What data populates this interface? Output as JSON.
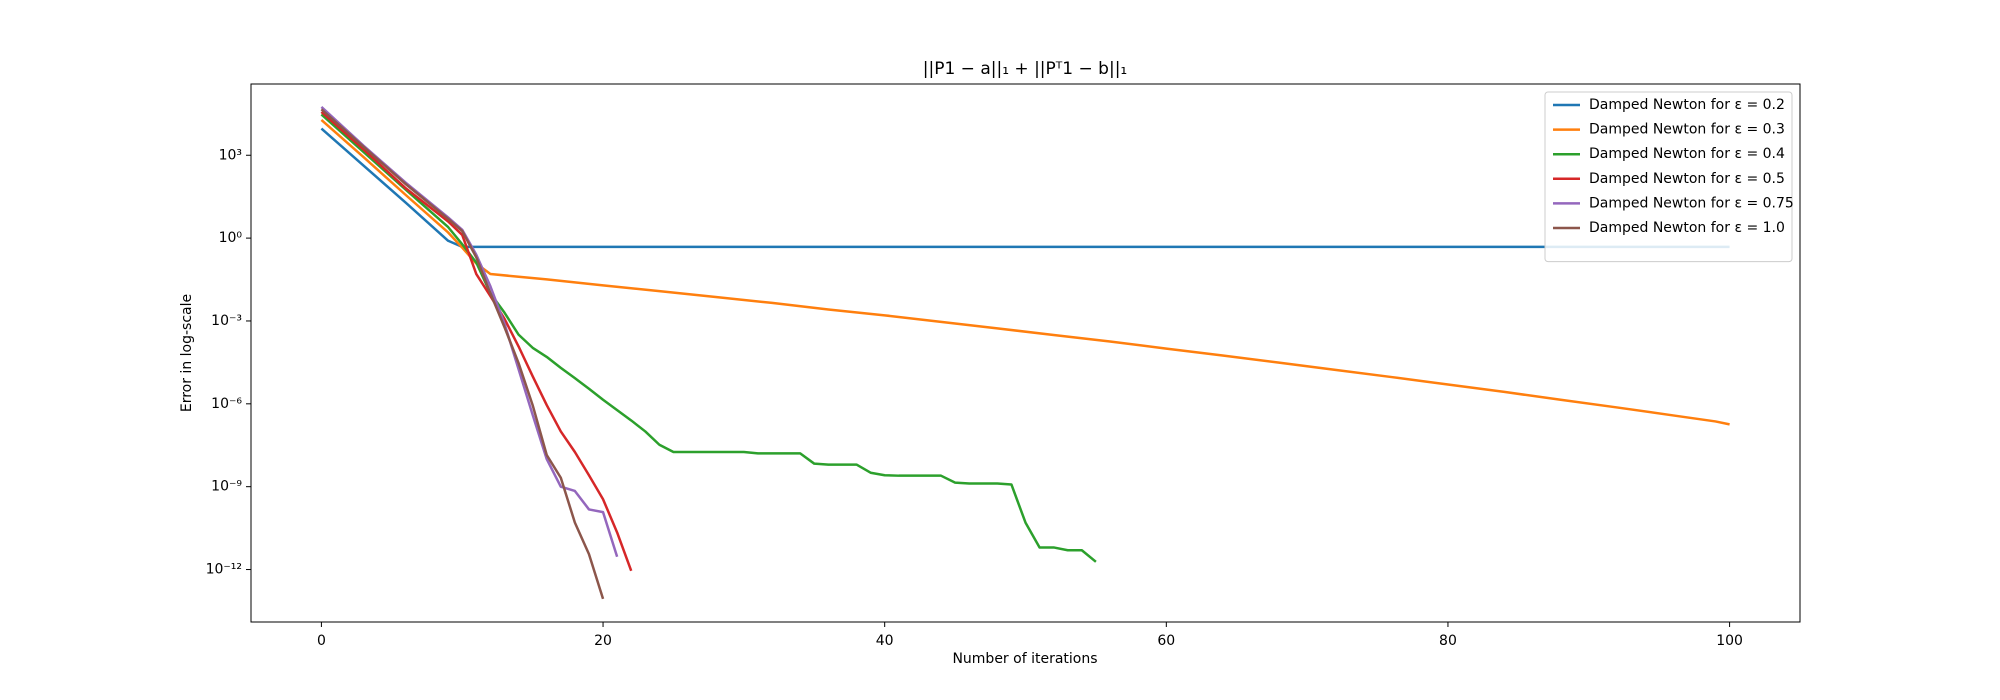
{
  "chart_data": {
    "type": "line",
    "title": "||P1 − a||₁ + ||Pᵀ1 − b||₁",
    "x_label": "Number of iterations",
    "y_label": "Error in log-scale",
    "ylog": true,
    "legend": "upper right",
    "xlim": [
      -5,
      105
    ],
    "xticks": [
      0,
      20,
      40,
      60,
      80,
      100
    ],
    "ylim": [
      1.26e-14,
      380000.0
    ],
    "yticks": [
      {
        "value": 1000,
        "label": "10³"
      },
      {
        "value": 1,
        "label": "10⁰"
      },
      {
        "value": 0.001,
        "label": "10⁻³"
      },
      {
        "value": 1e-06,
        "label": "10⁻⁶"
      },
      {
        "value": 1e-09,
        "label": "10⁻⁹"
      },
      {
        "value": 1e-12,
        "label": "10⁻¹²"
      }
    ],
    "series": [
      {
        "name": "Damped Newton for ε = 0.2",
        "color": "#1f77b4",
        "x": [
          0,
          3,
          6,
          9,
          10,
          100
        ],
        "values": [
          9300,
          420,
          19,
          0.8,
          0.48,
          0.48
        ]
      },
      {
        "name": "Damped Newton for ε = 0.3",
        "color": "#ff7f0e",
        "x": [
          0,
          3,
          6,
          9,
          10,
          11,
          12,
          16,
          20,
          24,
          28,
          32,
          36,
          40,
          44,
          48,
          52,
          56,
          60,
          64,
          68,
          72,
          76,
          80,
          84,
          88,
          92,
          96,
          99,
          100
        ],
        "values": [
          19000,
          850,
          36,
          1.6,
          0.45,
          0.12,
          0.05,
          0.032,
          0.0195,
          0.012,
          0.0074,
          0.0045,
          0.0026,
          0.0016,
          0.00093,
          0.00054,
          0.00031,
          0.00018,
          0.0001,
          5.6e-05,
          3.1e-05,
          1.7e-05,
          9.3e-06,
          5e-06,
          2.7e-06,
          1.4e-06,
          7.4e-07,
          3.8e-07,
          2.3e-07,
          1.8e-07
        ]
      },
      {
        "name": "Damped Newton for ε = 0.4",
        "color": "#2ca02c",
        "x": [
          0,
          3,
          6,
          9,
          10,
          11,
          12,
          13,
          14,
          15,
          16,
          17,
          18,
          19,
          20,
          21,
          22,
          23,
          24,
          25,
          30,
          31,
          34,
          35,
          36,
          38,
          39,
          40,
          41,
          44,
          45,
          46,
          48,
          49,
          50,
          51,
          52,
          53,
          54,
          55
        ],
        "values": [
          30000,
          1300,
          56,
          2.5,
          0.6,
          0.13,
          0.01,
          0.002,
          0.00032,
          0.000107,
          5e-05,
          2e-05,
          8.5e-06,
          3.5e-06,
          1.4e-06,
          5.9e-07,
          2.5e-07,
          1e-07,
          3.3e-08,
          1.8e-08,
          1.8e-08,
          1.6e-08,
          1.6e-08,
          6.8e-09,
          6.3e-09,
          6.3e-09,
          3.2e-09,
          2.6e-09,
          2.5e-09,
          2.5e-09,
          1.4e-09,
          1.3e-09,
          1.3e-09,
          1.2e-09,
          5e-11,
          6.3e-12,
          6.3e-12,
          5e-12,
          5e-12,
          1.9e-12
        ]
      },
      {
        "name": "Damped Newton for ε = 0.5",
        "color": "#d62728",
        "x": [
          0,
          3,
          6,
          9,
          10,
          11,
          12,
          13,
          14,
          15,
          16,
          17,
          18,
          19,
          20,
          21,
          22
        ],
        "values": [
          37000,
          1600,
          63,
          4,
          1.3,
          0.05,
          0.008,
          0.0012,
          0.00012,
          1e-05,
          9e-07,
          1e-07,
          1.8e-08,
          2.6e-09,
          3.5e-10,
          2.2e-11,
          9e-13
        ]
      },
      {
        "name": "Damped Newton for ε = 0.75",
        "color": "#9467bd",
        "x": [
          0,
          3,
          6,
          9,
          10,
          11,
          12,
          13,
          14,
          15,
          16,
          17,
          18,
          19,
          20,
          21
        ],
        "values": [
          56000,
          2200,
          100,
          5.6,
          2,
          0.25,
          0.018,
          0.0008,
          1.8e-05,
          4e-07,
          1e-08,
          1e-09,
          7e-10,
          1.5e-10,
          1.2e-10,
          2.9e-12
        ]
      },
      {
        "name": "Damped Newton for ε = 1.0",
        "color": "#8c564b",
        "x": [
          0,
          3,
          6,
          9,
          10,
          11,
          12,
          13,
          14,
          15,
          16,
          17,
          18,
          19,
          20
        ],
        "values": [
          46000,
          2000,
          89,
          5,
          1.8,
          0.2,
          0.01,
          0.0006,
          3e-05,
          9e-07,
          1.4e-08,
          2.1e-09,
          5e-11,
          3.6e-12,
          8.7e-14
        ]
      }
    ]
  }
}
